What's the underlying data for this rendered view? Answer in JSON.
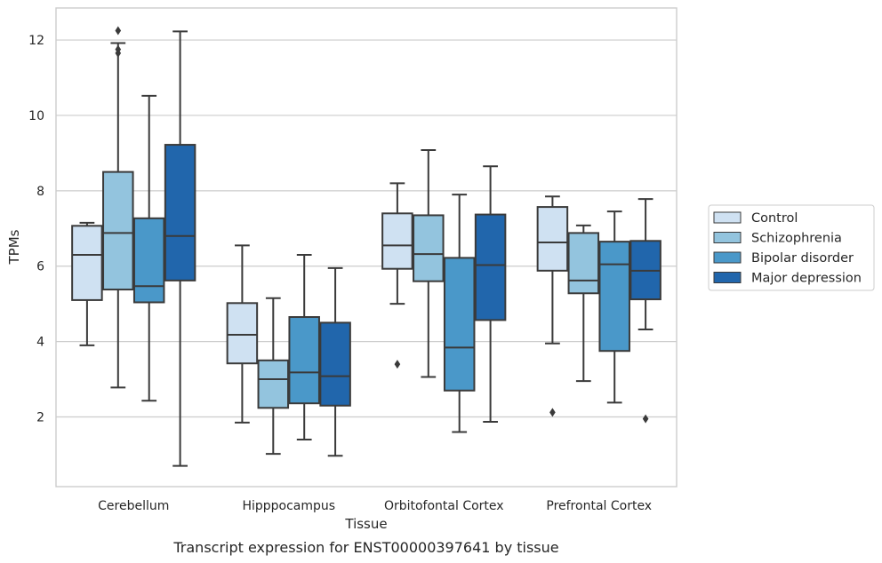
{
  "chart_data": {
    "type": "boxplot",
    "caption": "Transcript expression for ENST00000397641 by tissue",
    "xlabel": "Tissue",
    "ylabel": "TPMs",
    "ylim": [
      0.15,
      12.85
    ],
    "yticks": [
      2,
      4,
      6,
      8,
      10,
      12
    ],
    "grid": "horizontal",
    "legend_position": "right",
    "categories": [
      "Cerebellum",
      "Hipppocampus",
      "Orbitofontal Cortex",
      "Prefrontal Cortex"
    ],
    "series": [
      {
        "name": "Control",
        "color": "#cfe1f2",
        "boxes": [
          {
            "whisker_low": 3.9,
            "q1": 5.1,
            "median": 6.3,
            "q3": 7.07,
            "whisker_high": 7.15,
            "outliers": []
          },
          {
            "whisker_low": 1.85,
            "q1": 3.42,
            "median": 4.18,
            "q3": 5.02,
            "whisker_high": 6.55,
            "outliers": []
          },
          {
            "whisker_low": 5.0,
            "q1": 5.93,
            "median": 6.55,
            "q3": 7.4,
            "whisker_high": 8.2,
            "outliers": [
              3.4
            ]
          },
          {
            "whisker_low": 3.95,
            "q1": 5.88,
            "median": 6.63,
            "q3": 7.57,
            "whisker_high": 7.85,
            "outliers": [
              2.12
            ]
          }
        ]
      },
      {
        "name": "Schizophrenia",
        "color": "#93c4de",
        "boxes": [
          {
            "whisker_low": 2.78,
            "q1": 5.38,
            "median": 6.88,
            "q3": 8.5,
            "whisker_high": 11.92,
            "outliers": [
              11.65,
              11.75,
              12.25
            ]
          },
          {
            "whisker_low": 1.02,
            "q1": 2.24,
            "median": 3.0,
            "q3": 3.5,
            "whisker_high": 5.15,
            "outliers": []
          },
          {
            "whisker_low": 3.06,
            "q1": 5.6,
            "median": 6.32,
            "q3": 7.35,
            "whisker_high": 9.08,
            "outliers": []
          },
          {
            "whisker_low": 2.95,
            "q1": 5.28,
            "median": 5.62,
            "q3": 6.88,
            "whisker_high": 7.08,
            "outliers": []
          }
        ]
      },
      {
        "name": "Bipolar disorder",
        "color": "#4a98c9",
        "boxes": [
          {
            "whisker_low": 2.43,
            "q1": 5.04,
            "median": 5.47,
            "q3": 7.27,
            "whisker_high": 10.52,
            "outliers": []
          },
          {
            "whisker_low": 1.4,
            "q1": 2.36,
            "median": 3.18,
            "q3": 4.65,
            "whisker_high": 6.3,
            "outliers": []
          },
          {
            "whisker_low": 1.6,
            "q1": 2.7,
            "median": 3.84,
            "q3": 6.22,
            "whisker_high": 7.9,
            "outliers": []
          },
          {
            "whisker_low": 2.38,
            "q1": 3.75,
            "median": 6.05,
            "q3": 6.65,
            "whisker_high": 7.45,
            "outliers": []
          }
        ]
      },
      {
        "name": "Major depression",
        "color": "#2166ac",
        "boxes": [
          {
            "whisker_low": 0.7,
            "q1": 5.62,
            "median": 6.8,
            "q3": 9.22,
            "whisker_high": 12.23,
            "outliers": []
          },
          {
            "whisker_low": 0.97,
            "q1": 2.3,
            "median": 3.08,
            "q3": 4.5,
            "whisker_high": 5.95,
            "outliers": []
          },
          {
            "whisker_low": 1.87,
            "q1": 4.57,
            "median": 6.03,
            "q3": 7.37,
            "whisker_high": 8.65,
            "outliers": []
          },
          {
            "whisker_low": 4.32,
            "q1": 5.12,
            "median": 5.88,
            "q3": 6.67,
            "whisker_high": 7.78,
            "outliers": [
              1.95
            ]
          }
        ]
      }
    ]
  }
}
